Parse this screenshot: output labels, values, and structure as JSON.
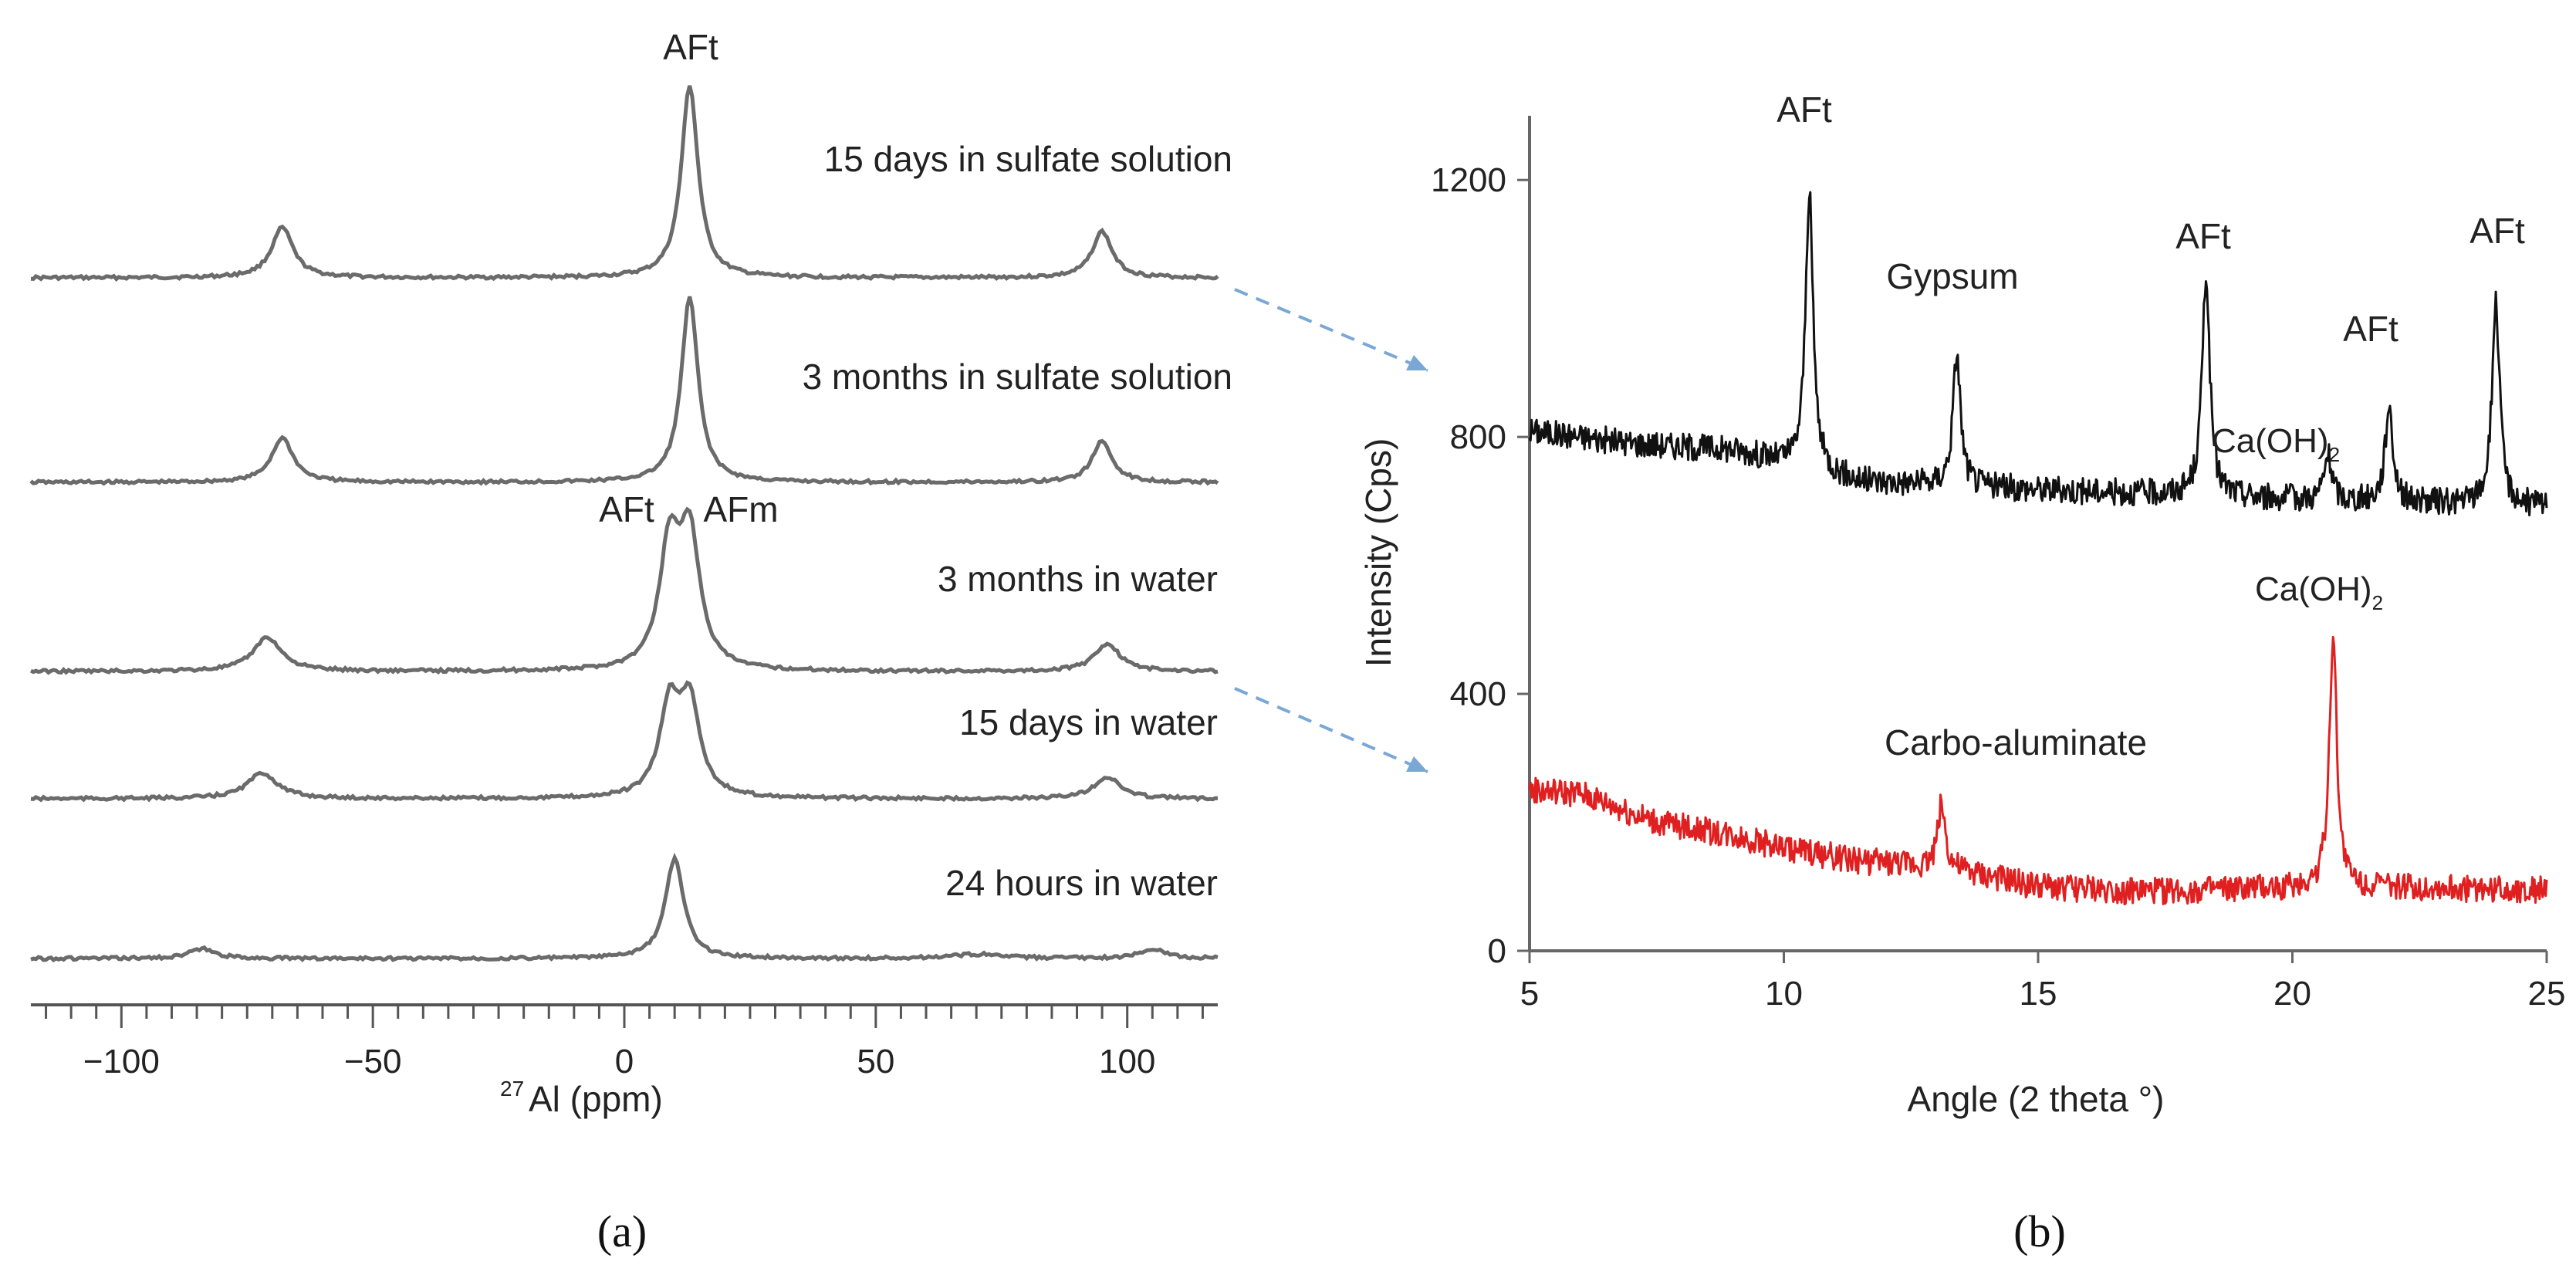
{
  "chart_data": [
    {
      "type": "line",
      "panel_label": "(a)",
      "xlabel_sup": "27",
      "xlabel": "Al (ppm)",
      "xlim": [
        -118,
        118
      ],
      "xticks": [
        -100,
        -50,
        0,
        50,
        100
      ],
      "xtick_labels": [
        "−100",
        "−50",
        "0",
        "50",
        "100"
      ],
      "series": [
        {
          "name": "15 days in sulfate solution",
          "baseline_row": 0,
          "peaks": [
            {
              "x": -68,
              "height": 0.26,
              "width": 2.6
            },
            {
              "x": 13,
              "height": 1.0,
              "width": 2.0
            },
            {
              "x": 95,
              "height": 0.24,
              "width": 2.4
            }
          ]
        },
        {
          "name": "3 months in sulfate solution",
          "baseline_row": 1,
          "peaks": [
            {
              "x": -68,
              "height": 0.24,
              "width": 2.6
            },
            {
              "x": 13,
              "height": 1.0,
              "width": 2.0
            },
            {
              "x": 95,
              "height": 0.22,
              "width": 2.4
            }
          ]
        },
        {
          "name": "3 months in water",
          "baseline_row": 2,
          "peaks": [
            {
              "x": -71,
              "height": 0.22,
              "width": 3.4
            },
            {
              "x": 9,
              "height": 0.78,
              "width": 2.4
            },
            {
              "x": 13,
              "height": 0.84,
              "width": 2.4
            },
            {
              "x": 96,
              "height": 0.18,
              "width": 3.0
            }
          ]
        },
        {
          "name": "15 days in water",
          "baseline_row": 3,
          "peaks": [
            {
              "x": -72,
              "height": 0.18,
              "width": 3.6
            },
            {
              "x": 9,
              "height": 0.62,
              "width": 2.4
            },
            {
              "x": 13,
              "height": 0.64,
              "width": 2.4
            },
            {
              "x": 96,
              "height": 0.15,
              "width": 3.2
            }
          ]
        },
        {
          "name": "24 hours in water",
          "baseline_row": 4,
          "peaks": [
            {
              "x": -84,
              "height": 0.07,
              "width": 3.0
            },
            {
              "x": 10,
              "height": 0.72,
              "width": 2.2
            },
            {
              "x": 70,
              "height": 0.03,
              "width": 6.0
            },
            {
              "x": 105,
              "height": 0.07,
              "width": 3.0
            }
          ]
        }
      ],
      "annotations": [
        "AFt",
        "AFt",
        "AFm"
      ]
    },
    {
      "type": "line",
      "panel_label": "(b)",
      "xlabel": "Angle (2 theta °)",
      "ylabel": "Intensity (Cps)",
      "xlim": [
        5,
        25
      ],
      "ylim": [
        0,
        1300
      ],
      "xticks": [
        5,
        10,
        15,
        20,
        25
      ],
      "yticks": [
        0,
        400,
        800,
        1200
      ],
      "series": [
        {
          "name": "black pattern",
          "color": "#111111",
          "baseline_points": [
            [
              5,
              810
            ],
            [
              7,
              790
            ],
            [
              9,
              780
            ],
            [
              10,
              760
            ],
            [
              11.5,
              730
            ],
            [
              13,
              725
            ],
            [
              15,
              718
            ],
            [
              17,
              712
            ],
            [
              19,
              706
            ],
            [
              21,
              700
            ],
            [
              23,
              696
            ],
            [
              25,
              692
            ]
          ],
          "peaks": [
            {
              "angle": 10.5,
              "intensity": 1180
            },
            {
              "angle": 13.4,
              "intensity": 930
            },
            {
              "angle": 18.3,
              "intensity": 1055
            },
            {
              "angle": 20.7,
              "intensity": 770
            },
            {
              "angle": 21.9,
              "intensity": 850
            },
            {
              "angle": 24.0,
              "intensity": 1010
            }
          ]
        },
        {
          "name": "red pattern",
          "color": "#e02020",
          "baseline_points": [
            [
              5,
              250
            ],
            [
              6,
              245
            ],
            [
              7.5,
              200
            ],
            [
              9,
              180
            ],
            [
              10,
              160
            ],
            [
              11.5,
              140
            ],
            [
              13,
              130
            ],
            [
              15,
              100
            ],
            [
              17,
              92
            ],
            [
              19,
              95
            ],
            [
              21,
              100
            ],
            [
              23,
              97
            ],
            [
              25,
              95
            ]
          ],
          "peaks": [
            {
              "angle": 13.1,
              "intensity": 230
            },
            {
              "angle": 20.8,
              "intensity": 490
            }
          ]
        }
      ],
      "annotations": [
        "AFt",
        "Gypsum",
        "AFt",
        "Ca(OH)",
        "2",
        "AFt",
        "AFt",
        "Ca(OH)",
        "2",
        "Carbo-aluminate"
      ]
    }
  ]
}
